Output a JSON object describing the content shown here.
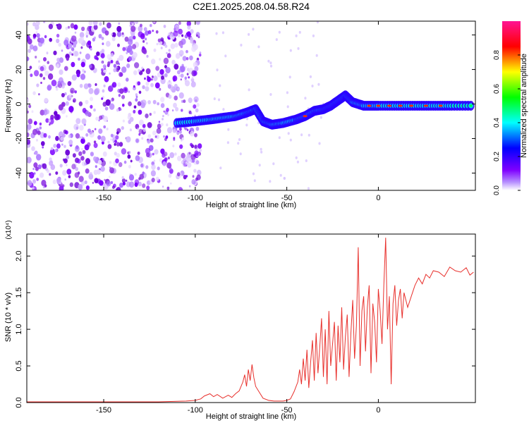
{
  "figure_title": "C2E1.2025.208.04.58.R24",
  "chart_data": [
    {
      "type": "heatmap",
      "xlabel": "Height of straight line (km)",
      "ylabel": "Frequency (Hz)",
      "xlim": [
        -192,
        53
      ],
      "ylim": [
        -50,
        48
      ],
      "xticks": [
        -150,
        -100,
        -50,
        0
      ],
      "yticks": [
        -40,
        -20,
        0,
        20,
        40
      ],
      "colorbar": {
        "label": "Normalized spectral amplitude",
        "range": [
          0.0,
          1.0
        ],
        "ticks": [
          0.0,
          0.2,
          0.4,
          0.6,
          0.8
        ],
        "tick_labels": [
          "0.0",
          "0.2",
          "0.4",
          "0.6",
          "0.8"
        ],
        "colormap": [
          "#ffffff",
          "#7f00ff",
          "#0000ff",
          "#00ffff",
          "#00ff00",
          "#ffff00",
          "#ff0000",
          "#ff1493"
        ]
      },
      "noise_region_x": [
        -192,
        -97
      ],
      "signal_track": [
        {
          "x": -110,
          "y": -11
        },
        {
          "x": -100,
          "y": -10
        },
        {
          "x": -92,
          "y": -9
        },
        {
          "x": -85,
          "y": -8
        },
        {
          "x": -78,
          "y": -7
        },
        {
          "x": -72,
          "y": -5
        },
        {
          "x": -67,
          "y": -3
        },
        {
          "x": -63,
          "y": -10
        },
        {
          "x": -58,
          "y": -12
        },
        {
          "x": -52,
          "y": -11
        },
        {
          "x": -45,
          "y": -9
        },
        {
          "x": -40,
          "y": -7
        },
        {
          "x": -35,
          "y": -4
        },
        {
          "x": -30,
          "y": -3
        },
        {
          "x": -26,
          "y": -1
        },
        {
          "x": -22,
          "y": 2
        },
        {
          "x": -18,
          "y": 5
        },
        {
          "x": -14,
          "y": 1
        },
        {
          "x": -8,
          "y": -1
        },
        {
          "x": 0,
          "y": -1
        },
        {
          "x": 10,
          "y": -1
        },
        {
          "x": 20,
          "y": -1
        },
        {
          "x": 30,
          "y": -1
        },
        {
          "x": 40,
          "y": -1
        },
        {
          "x": 52,
          "y": -1
        }
      ]
    },
    {
      "type": "line",
      "xlabel": "Height of straight line (km)",
      "ylabel": "SNR (10 * v/v)",
      "y_multiplier": "(x10⁴)",
      "xlim": [
        -192,
        53
      ],
      "ylim": [
        0.0,
        2.3
      ],
      "xticks": [
        -150,
        -100,
        -50,
        0
      ],
      "yticks": [
        0.0,
        0.5,
        1.0,
        1.5,
        2.0
      ],
      "ytick_labels": [
        "0.0",
        "0.5",
        "1.0",
        "1.5",
        "2.0"
      ],
      "color": "#e8302c",
      "series": [
        {
          "x": [
            -192,
            -180,
            -160,
            -140,
            -120,
            -105,
            -100,
            -97,
            -95,
            -92,
            -90,
            -88,
            -85,
            -82,
            -80,
            -78,
            -76,
            -74,
            -73,
            -72,
            -71,
            -70,
            -69,
            -68,
            -67,
            -65,
            -63,
            -60,
            -57,
            -54,
            -52,
            -50,
            -48,
            -46,
            -44,
            -43,
            -42,
            -41,
            -40,
            -39,
            -38,
            -37,
            -36,
            -35,
            -34,
            -33,
            -32,
            -31,
            -30,
            -29,
            -28,
            -27,
            -26,
            -25,
            -24,
            -23,
            -22,
            -21,
            -20,
            -19,
            -18,
            -17,
            -16,
            -15,
            -14,
            -13,
            -12,
            -11,
            -10,
            -9,
            -8,
            -7,
            -6,
            -5,
            -4,
            -3,
            -2,
            -1,
            0,
            1,
            2,
            3,
            4,
            5,
            6,
            7,
            8,
            9,
            10,
            11,
            12,
            13,
            14,
            16,
            18,
            20,
            22,
            24,
            26,
            28,
            30,
            33,
            36,
            39,
            42,
            45,
            48,
            50,
            52
          ],
          "y": [
            0.01,
            0.01,
            0.01,
            0.01,
            0.01,
            0.02,
            0.03,
            0.05,
            0.09,
            0.12,
            0.08,
            0.11,
            0.06,
            0.1,
            0.07,
            0.12,
            0.16,
            0.28,
            0.38,
            0.22,
            0.45,
            0.3,
            0.52,
            0.34,
            0.22,
            0.14,
            0.06,
            0.03,
            0.02,
            0.02,
            0.02,
            0.03,
            0.05,
            0.15,
            0.28,
            0.45,
            0.25,
            0.6,
            0.3,
            0.72,
            0.2,
            0.55,
            0.85,
            0.3,
            0.95,
            0.4,
            0.75,
            1.15,
            0.35,
            1.0,
            0.25,
            1.25,
            0.5,
            0.8,
            1.1,
            0.3,
            1.05,
            0.55,
            1.3,
            0.45,
            0.9,
            1.2,
            0.35,
            0.95,
            1.4,
            0.6,
            1.05,
            2.12,
            0.5,
            1.25,
            1.45,
            0.7,
            1.3,
            1.6,
            0.4,
            1.35,
            1.1,
            0.55,
            1.55,
            1.25,
            0.8,
            1.6,
            2.25,
            1.0,
            1.45,
            0.25,
            1.35,
            1.6,
            1.05,
            1.4,
            1.55,
            1.15,
            1.5,
            1.3,
            1.45,
            1.6,
            1.7,
            1.62,
            1.75,
            1.7,
            1.8,
            1.78,
            1.72,
            1.85,
            1.8,
            1.78,
            1.84,
            1.74,
            1.78
          ]
        }
      ]
    }
  ]
}
